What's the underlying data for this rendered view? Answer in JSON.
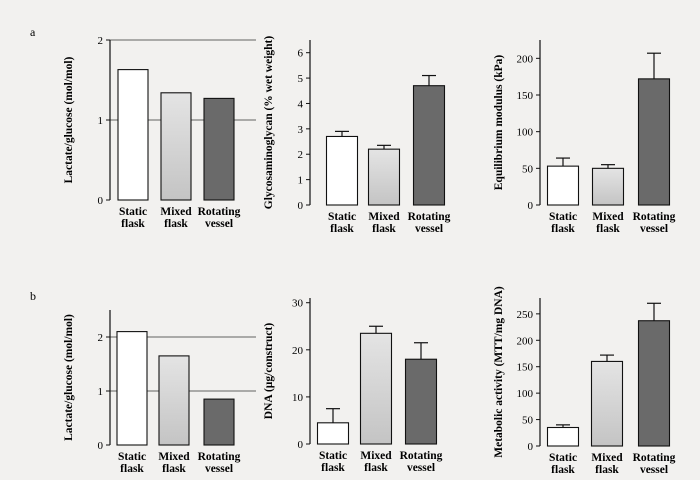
{
  "panel_labels": [
    "a",
    "b"
  ],
  "chart_data": [
    {
      "type": "bar",
      "panel": "a",
      "ylabel": "Lactate/glucose (mol/mol)",
      "categories": [
        [
          "Static",
          "flask"
        ],
        [
          "Mixed",
          "flask"
        ],
        [
          "Rotating",
          "vessel"
        ]
      ],
      "values": [
        1.63,
        1.34,
        1.27
      ],
      "errors": [
        0,
        0,
        0
      ],
      "ylim": [
        0,
        2
      ],
      "yticks": [
        0,
        1,
        2
      ],
      "reference_lines": [
        1,
        2
      ]
    },
    {
      "type": "bar",
      "panel": "a",
      "ylabel": "Glycosaminoglycan (% wet weight)",
      "categories": [
        [
          "Static",
          "flask"
        ],
        [
          "Mixed",
          "flask"
        ],
        [
          "Rotating",
          "vessel"
        ]
      ],
      "values": [
        2.7,
        2.2,
        4.7
      ],
      "errors": [
        0.2,
        0.15,
        0.4
      ],
      "ylim": [
        0,
        6.5
      ],
      "yticks": [
        0,
        1,
        2,
        3,
        4,
        5,
        6
      ],
      "reference_lines": []
    },
    {
      "type": "bar",
      "panel": "a",
      "ylabel": "Equilibrium modulus (kPa)",
      "categories": [
        [
          "Static",
          "flask"
        ],
        [
          "Mixed",
          "flask"
        ],
        [
          "Rotating",
          "vessel"
        ]
      ],
      "values": [
        53,
        50,
        172
      ],
      "errors": [
        11,
        5,
        35
      ],
      "ylim": [
        0,
        225
      ],
      "yticks": [
        0,
        50,
        100,
        150,
        200
      ],
      "reference_lines": []
    },
    {
      "type": "bar",
      "panel": "b",
      "ylabel": "Lactate/glucose (mol/mol)",
      "categories": [
        [
          "Static",
          "flask"
        ],
        [
          "Mixed",
          "flask"
        ],
        [
          "Rotating",
          "vessel"
        ]
      ],
      "values": [
        2.1,
        1.65,
        0.85
      ],
      "errors": [
        0,
        0,
        0
      ],
      "ylim": [
        0,
        2.5
      ],
      "yticks": [
        0,
        1,
        2
      ],
      "reference_lines": [
        1,
        2
      ]
    },
    {
      "type": "bar",
      "panel": "b",
      "ylabel": "DNA (µg/construct)",
      "categories": [
        [
          "Static",
          "flask"
        ],
        [
          "Mixed",
          "flask"
        ],
        [
          "Rotating",
          "vessel"
        ]
      ],
      "values": [
        4.5,
        23.5,
        18
      ],
      "errors": [
        3,
        1.5,
        3.5
      ],
      "ylim": [
        0,
        31
      ],
      "yticks": [
        0,
        10,
        20,
        30
      ],
      "reference_lines": []
    },
    {
      "type": "bar",
      "panel": "b",
      "ylabel": "Metabolic activity (MTT/mg DNA)",
      "categories": [
        [
          "Static",
          "flask"
        ],
        [
          "Mixed",
          "flask"
        ],
        [
          "Rotating",
          "vessel"
        ]
      ],
      "values": [
        35,
        160,
        237
      ],
      "errors": [
        5,
        12,
        33
      ],
      "ylim": [
        0,
        280
      ],
      "yticks": [
        0,
        50,
        100,
        150,
        200,
        250
      ],
      "reference_lines": []
    }
  ],
  "colors": {
    "bars": [
      "#ffffff",
      "#d8d8d8",
      "#6a6a6a"
    ],
    "axis": "#111111",
    "background": "#f2f1ef"
  }
}
